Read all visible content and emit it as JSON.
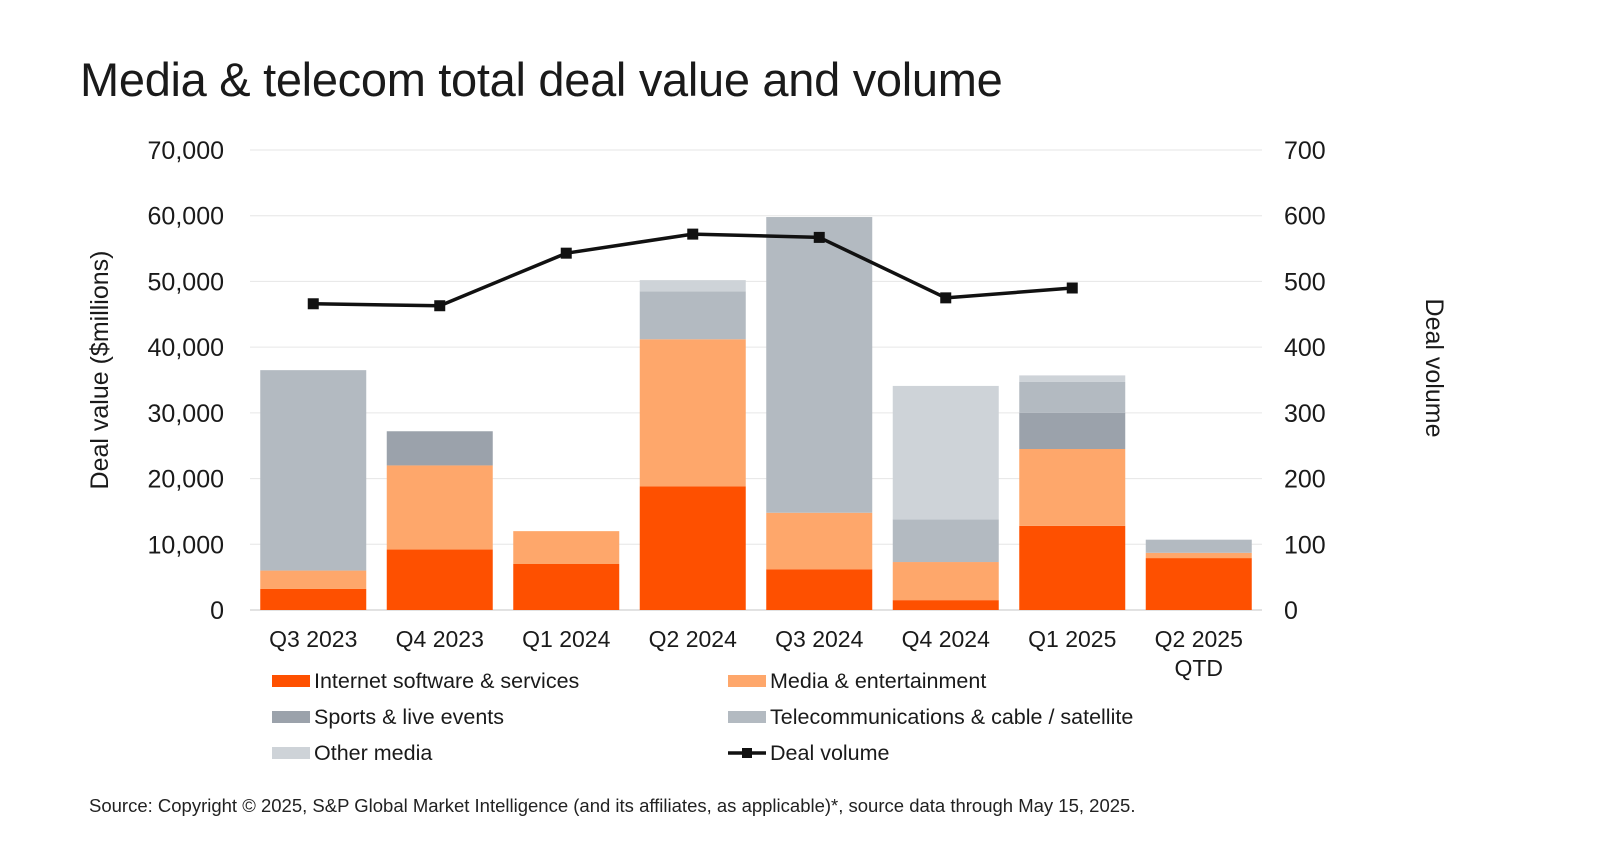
{
  "chart_data": {
    "type": "bar",
    "stacked": true,
    "title": "Media & telecom total deal value and volume",
    "categories": [
      "Q3 2023",
      "Q4 2023",
      "Q1 2024",
      "Q2 2024",
      "Q3 2024",
      "Q4 2024",
      "Q1 2025",
      "Q2 2025\nQTD"
    ],
    "ylabel": "Deal value ($millions)",
    "y2label": "Deal volume",
    "ylim": [
      0,
      70000
    ],
    "y2lim": [
      0,
      700
    ],
    "yticks": [
      "0",
      "10,000",
      "20,000",
      "30,000",
      "40,000",
      "50,000",
      "60,000",
      "70,000"
    ],
    "y2ticks": [
      "0",
      "100",
      "200",
      "300",
      "400",
      "500",
      "600",
      "700"
    ],
    "grid": true,
    "legend_position": "bottom",
    "series": [
      {
        "name": "Internet software & services",
        "color": "#fe5000",
        "values": [
          3200,
          9200,
          7000,
          18800,
          6200,
          1500,
          12800,
          7900
        ]
      },
      {
        "name": "Media & entertainment",
        "color": "#fea76b",
        "values": [
          2800,
          12800,
          5000,
          22400,
          8600,
          5800,
          11700,
          800
        ]
      },
      {
        "name": "Sports & live events",
        "color": "#9ba2ab",
        "values": [
          0,
          5200,
          0,
          0,
          0,
          0,
          5500,
          0
        ]
      },
      {
        "name": "Telecommunications & cable / satellite",
        "color": "#b3bac1",
        "values": [
          30500,
          0,
          0,
          7300,
          45000,
          6500,
          4700,
          2000
        ]
      },
      {
        "name": "Other media",
        "color": "#ced3d8",
        "values": [
          0,
          0,
          0,
          1700,
          0,
          20300,
          1000,
          0
        ]
      }
    ],
    "line_series": {
      "name": "Deal volume",
      "color": "#111111",
      "axis": "right",
      "values": [
        466,
        463,
        543,
        572,
        567,
        475,
        490,
        null
      ]
    }
  },
  "source": "Source: Copyright © 2025, S&P Global Market Intelligence (and its affiliates, as applicable)*, source data through May 15, 2025."
}
